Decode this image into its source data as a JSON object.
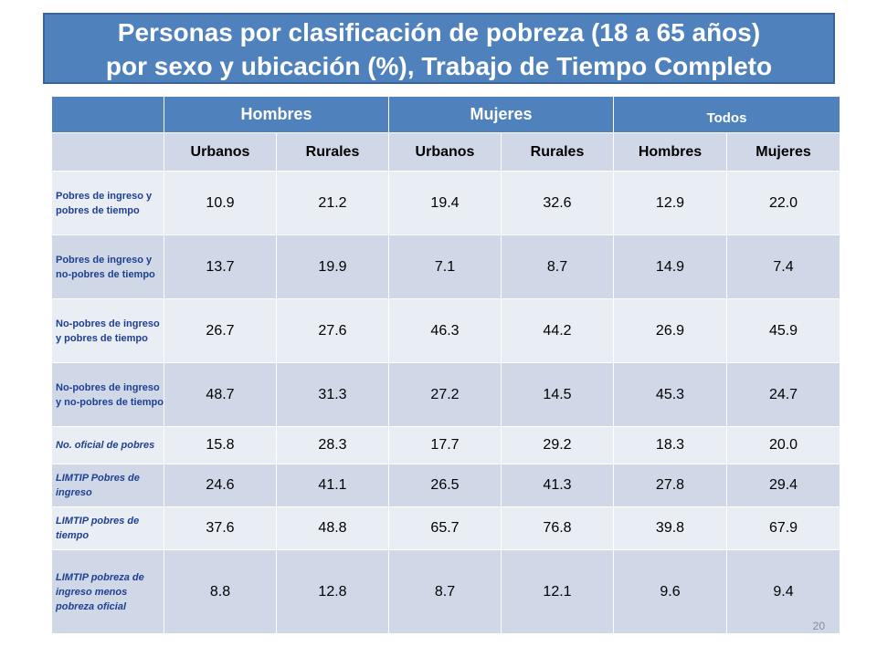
{
  "title": {
    "line1": "Personas por clasificación de pobreza (18 a 65 años)",
    "line2": "por sexo y ubicación (%), Trabajo de Tiempo Completo"
  },
  "table": {
    "groups": [
      "Hombres",
      "Mujeres",
      "Todos"
    ],
    "subheaders": [
      "Urbanos",
      "Rurales",
      "Urbanos",
      "Rurales",
      "Hombres",
      "Mujeres"
    ],
    "rows": [
      {
        "label": "Pobres de ingreso y pobres de tiempo",
        "values": [
          "10.9",
          "21.2",
          "19.4",
          "32.6",
          "12.9",
          "22.0"
        ]
      },
      {
        "label": "Pobres de ingreso y no-pobres de tiempo",
        "values": [
          "13.7",
          "19.9",
          "7.1",
          "8.7",
          "14.9",
          "7.4"
        ]
      },
      {
        "label": "No-pobres de ingreso y pobres de tiempo",
        "values": [
          "26.7",
          "27.6",
          "46.3",
          "44.2",
          "26.9",
          "45.9"
        ]
      },
      {
        "label": "No-pobres de ingreso y no-pobres de tiempo",
        "values": [
          "48.7",
          "31.3",
          "27.2",
          "14.5",
          "45.3",
          "24.7"
        ]
      },
      {
        "label": "No. oficial de pobres",
        "values": [
          "15.8",
          "28.3",
          "17.7",
          "29.2",
          "18.3",
          "20.0"
        ]
      },
      {
        "label": "LIMTIP Pobres de ingreso",
        "values": [
          "24.6",
          "41.1",
          "26.5",
          "41.3",
          "27.8",
          "29.4"
        ]
      },
      {
        "label": "LIMTIP pobres de tiempo",
        "values": [
          "37.6",
          "48.8",
          "65.7",
          "76.8",
          "39.8",
          "67.9"
        ]
      },
      {
        "label": "LIMTIP pobreza de ingreso menos pobreza oficial",
        "values": [
          "8.8",
          "12.8",
          "8.7",
          "12.1",
          "9.6",
          "9.4"
        ]
      }
    ]
  },
  "page_number": "20"
}
